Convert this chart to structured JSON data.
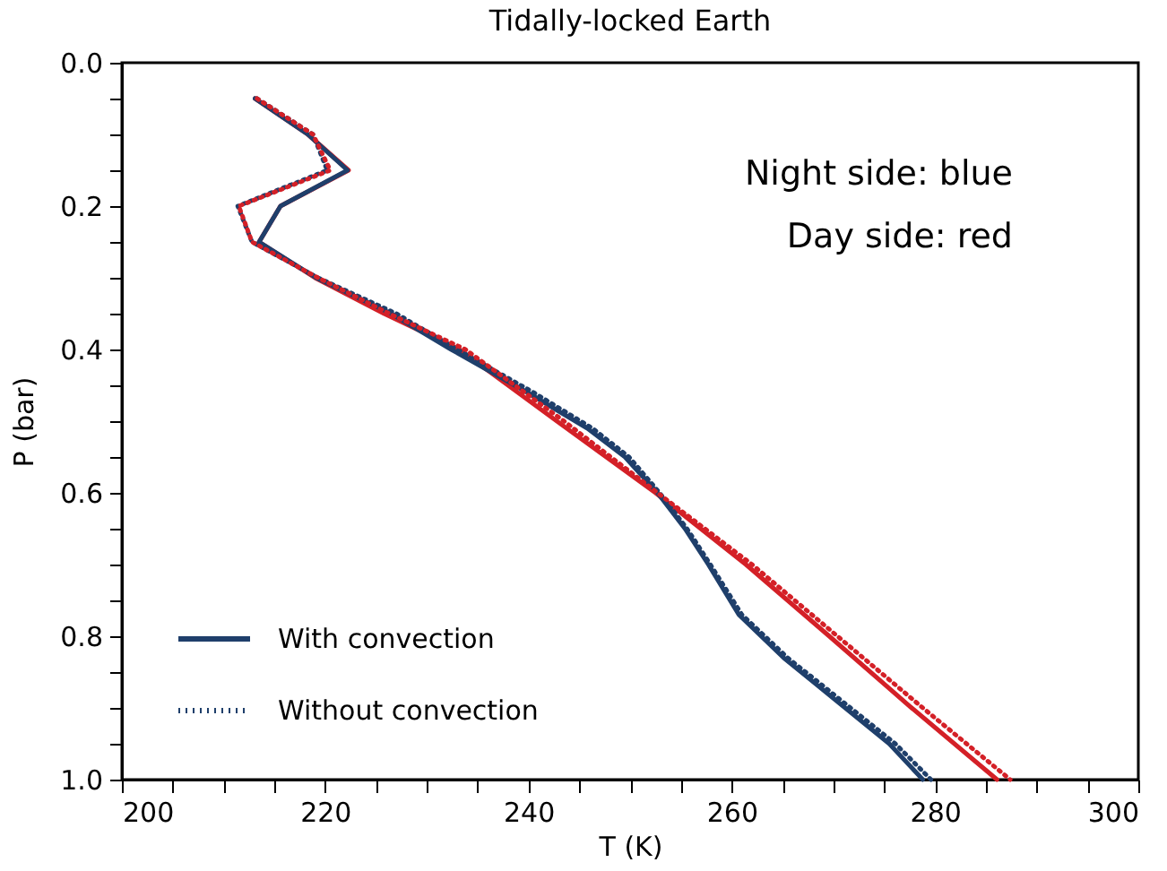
{
  "chart_data": {
    "type": "line",
    "title": "Tidally-locked Earth",
    "xlabel": "T (K)",
    "ylabel": "P (bar)",
    "annotations": [
      "Night side: blue",
      "Day side: red"
    ],
    "xlim": [
      200,
      300
    ],
    "xticks": [
      200,
      {
        "value": 205,
        "label": null
      },
      {
        "value": 210,
        "label": null
      },
      {
        "value": 215,
        "label": null
      },
      220,
      {
        "value": 225,
        "label": null
      },
      {
        "value": 230,
        "label": null
      },
      {
        "value": 235,
        "label": null
      },
      240,
      {
        "value": 245,
        "label": null
      },
      {
        "value": 250,
        "label": null
      },
      {
        "value": 255,
        "label": null
      },
      260,
      {
        "value": 265,
        "label": null
      },
      {
        "value": 270,
        "label": null
      },
      {
        "value": 275,
        "label": null
      },
      280,
      {
        "value": 285,
        "label": null
      },
      {
        "value": 290,
        "label": null
      },
      {
        "value": 295,
        "label": null
      },
      300
    ],
    "ylim": [
      1.0,
      0.0
    ],
    "yticks": [
      {
        "value": 0,
        "label": "0.0"
      },
      {
        "value": 0.05,
        "label": null
      },
      {
        "value": 0.1,
        "label": null
      },
      {
        "value": 0.15,
        "label": null
      },
      0.2,
      {
        "value": 0.25,
        "label": null
      },
      {
        "value": 0.3,
        "label": null
      },
      {
        "value": 0.35,
        "label": null
      },
      0.4,
      {
        "value": 0.45,
        "label": null
      },
      {
        "value": 0.5,
        "label": null
      },
      {
        "value": 0.55,
        "label": null
      },
      0.6,
      {
        "value": 0.65,
        "label": null
      },
      {
        "value": 0.7,
        "label": null
      },
      {
        "value": 0.75,
        "label": null
      },
      0.8,
      {
        "value": 0.85,
        "label": null
      },
      {
        "value": 0.9,
        "label": null
      },
      {
        "value": 0.95,
        "label": null
      },
      {
        "value": 1.0,
        "label": "1.0"
      }
    ],
    "grid": false,
    "legend": "bottom left",
    "marker": "none",
    "series": [
      {
        "color": "#d42027",
        "line_style": "solid",
        "x": [
          213.1,
          218.3,
          222.3,
          215.6,
          213.5,
          219.0,
          225.8,
          233.2,
          242.8,
          252.5,
          261.4,
          269.6,
          277.7,
          286.1
        ],
        "values": [
          0.05,
          0.1,
          0.15,
          0.2,
          0.25,
          0.3,
          0.35,
          0.4,
          0.5,
          0.6,
          0.7,
          0.8,
          0.9,
          1.0
        ]
      },
      {
        "name": "With convection",
        "color": "#1f3f6b",
        "line_style": "solid",
        "x": [
          213.1,
          218.3,
          222.2,
          215.6,
          213.5,
          219.1,
          226.5,
          232.4,
          239.9,
          245.8,
          249.5,
          252.7,
          255.4,
          257.7,
          260.7,
          265.1,
          270.3,
          275.5,
          278.8
        ],
        "values": [
          0.05,
          0.1,
          0.15,
          0.2,
          0.25,
          0.3,
          0.35,
          0.4,
          0.46,
          0.51,
          0.55,
          0.6,
          0.65,
          0.7,
          0.77,
          0.83,
          0.89,
          0.95,
          1.0
        ]
      },
      {
        "name": "Without convection",
        "color": "#1f3f6b",
        "line_style": "dotted",
        "x": [
          213.3,
          218.8,
          220.2,
          211.4,
          212.8,
          219.3,
          227.0,
          233.0,
          240.5,
          246.3,
          249.9,
          252.9,
          255.6,
          257.9,
          261.0,
          265.5,
          270.8,
          276.1,
          279.6
        ],
        "values": [
          0.05,
          0.1,
          0.15,
          0.2,
          0.25,
          0.3,
          0.35,
          0.4,
          0.46,
          0.51,
          0.55,
          0.6,
          0.65,
          0.7,
          0.77,
          0.83,
          0.89,
          0.95,
          1.0
        ]
      },
      {
        "color": "#d42027",
        "line_style": "dotted",
        "x": [
          213.3,
          218.8,
          220.5,
          211.5,
          212.8,
          219.3,
          226.3,
          233.8,
          243.5,
          252.7,
          262.0,
          270.4,
          278.8,
          287.4
        ],
        "values": [
          0.05,
          0.1,
          0.15,
          0.2,
          0.25,
          0.3,
          0.35,
          0.4,
          0.5,
          0.6,
          0.7,
          0.8,
          0.9,
          1.0
        ]
      }
    ]
  }
}
